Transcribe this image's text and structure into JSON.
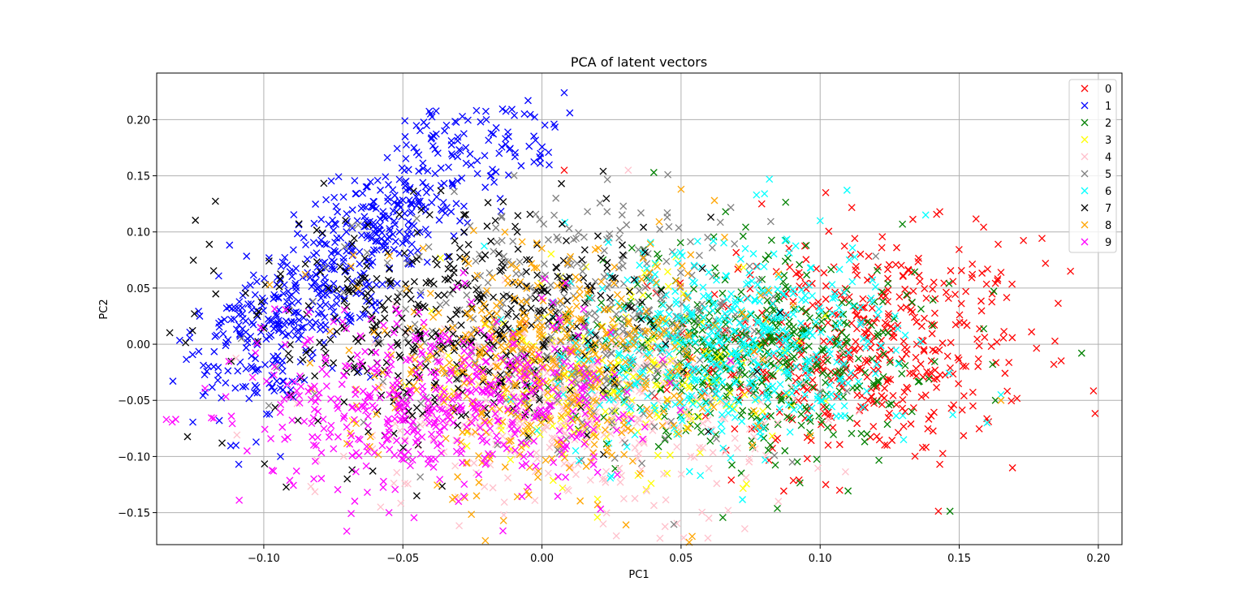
{
  "chart_data": {
    "type": "scatter",
    "title": "PCA of latent vectors",
    "xlabel": "PC1",
    "ylabel": "PC2",
    "xlim": [
      -0.1385,
      0.2085
    ],
    "ylim": [
      -0.1785,
      0.2415
    ],
    "xticks": [
      -0.1,
      -0.05,
      0.0,
      0.05,
      0.1,
      0.15,
      0.2
    ],
    "xtick_labels": [
      "−0.10",
      "−0.05",
      "0.00",
      "0.05",
      "0.10",
      "0.15",
      "0.20"
    ],
    "yticks": [
      -0.15,
      -0.1,
      -0.05,
      0.0,
      0.05,
      0.1,
      0.15,
      0.2
    ],
    "ytick_labels": [
      "−0.15",
      "−0.10",
      "−0.05",
      "0.00",
      "0.05",
      "0.10",
      "0.15",
      "0.20"
    ],
    "grid": true,
    "marker": "x",
    "legend_position": "top-right",
    "series": [
      {
        "name": "0",
        "color": "#ff0000",
        "count": 500,
        "center": [
          0.115,
          -0.005
        ],
        "spread": [
          0.03,
          0.05
        ],
        "points": [
          [
            0.008,
            0.155
          ],
          [
            0.102,
            0.135
          ],
          [
            0.143,
            0.118
          ],
          [
            0.19,
            0.065
          ],
          [
            0.181,
            0.072
          ],
          [
            0.176,
            0.011
          ],
          [
            0.184,
            -0.018
          ],
          [
            0.143,
            -0.107
          ],
          [
            0.107,
            -0.13
          ],
          [
            0.102,
            -0.125
          ],
          [
            0.079,
            0.125
          ],
          [
            0.164,
            0.089
          ],
          [
            0.148,
            -0.054
          ],
          [
            0.165,
            0.064
          ]
        ]
      },
      {
        "name": "1",
        "color": "#0000ff",
        "count": 620,
        "center": [
          -0.08,
          0.045
        ],
        "spread": [
          0.02,
          0.05
        ],
        "points": [
          [
            0.008,
            0.224
          ],
          [
            -0.005,
            0.217
          ],
          [
            0.01,
            0.206
          ],
          [
            -0.02,
            0.2
          ],
          [
            -0.035,
            0.19
          ],
          [
            -0.012,
            0.185
          ],
          [
            -0.046,
            0.175
          ],
          [
            -0.118,
            -0.02
          ],
          [
            -0.116,
            -0.068
          ],
          [
            -0.109,
            -0.107
          ],
          [
            -0.094,
            -0.1
          ],
          [
            -0.11,
            -0.09
          ]
        ]
      },
      {
        "name": "2",
        "color": "#008000",
        "count": 480,
        "center": [
          0.075,
          -0.01
        ],
        "spread": [
          0.03,
          0.045
        ],
        "points": [
          [
            0.194,
            -0.008
          ],
          [
            0.162,
            -0.018
          ],
          [
            0.163,
            -0.05
          ],
          [
            0.066,
            0.118
          ],
          [
            0.095,
            0.088
          ],
          [
            0.133,
            -0.06
          ]
        ]
      },
      {
        "name": "3",
        "color": "#ffff00",
        "count": 250,
        "center": [
          0.025,
          -0.03
        ],
        "spread": [
          0.03,
          0.045
        ],
        "points": [
          [
            0.045,
            -0.115
          ],
          [
            0.02,
            -0.138
          ]
        ]
      },
      {
        "name": "4",
        "color": "#ffc0cb",
        "count": 420,
        "center": [
          0.01,
          -0.06
        ],
        "spread": [
          0.035,
          0.045
        ],
        "points": [
          [
            0.031,
            0.155
          ],
          [
            0.022,
            -0.16
          ],
          [
            -0.058,
            -0.145
          ],
          [
            0.06,
            -0.155
          ],
          [
            0.085,
            -0.14
          ]
        ]
      },
      {
        "name": "5",
        "color": "#808080",
        "count": 430,
        "center": [
          0.015,
          0.02
        ],
        "spread": [
          0.035,
          0.05
        ],
        "points": [
          [
            -0.045,
            0.112
          ],
          [
            0.005,
            0.13
          ],
          [
            0.09,
            -0.105
          ]
        ]
      },
      {
        "name": "6",
        "color": "#00ffff",
        "count": 520,
        "center": [
          0.065,
          0.0
        ],
        "spread": [
          0.03,
          0.045
        ],
        "points": [
          [
            0.08,
            0.134
          ],
          [
            0.165,
            -0.045
          ],
          [
            0.16,
            -0.07
          ],
          [
            0.13,
            -0.085
          ],
          [
            0.1,
            0.11
          ]
        ]
      },
      {
        "name": "7",
        "color": "#000000",
        "count": 460,
        "center": [
          -0.03,
          0.02
        ],
        "spread": [
          0.035,
          0.05
        ],
        "points": [
          [
            0.022,
            0.154
          ],
          [
            -0.115,
            -0.088
          ],
          [
            -0.07,
            -0.12
          ],
          [
            -0.045,
            -0.135
          ],
          [
            0.007,
            0.143
          ]
        ]
      },
      {
        "name": "8",
        "color": "#ffa500",
        "count": 480,
        "center": [
          0.0,
          -0.015
        ],
        "spread": [
          0.035,
          0.05
        ],
        "points": [
          [
            0.05,
            0.138
          ],
          [
            0.165,
            -0.05
          ],
          [
            0.062,
            0.128
          ],
          [
            0.02,
            -0.143
          ]
        ]
      },
      {
        "name": "9",
        "color": "#ff00ff",
        "count": 520,
        "center": [
          -0.035,
          -0.055
        ],
        "spread": [
          0.035,
          0.04
        ],
        "points": [
          [
            -0.118,
            -0.066
          ],
          [
            -0.106,
            -0.095
          ],
          [
            -0.082,
            -0.12
          ],
          [
            -0.055,
            -0.15
          ],
          [
            -0.03,
            -0.14
          ]
        ]
      }
    ]
  }
}
